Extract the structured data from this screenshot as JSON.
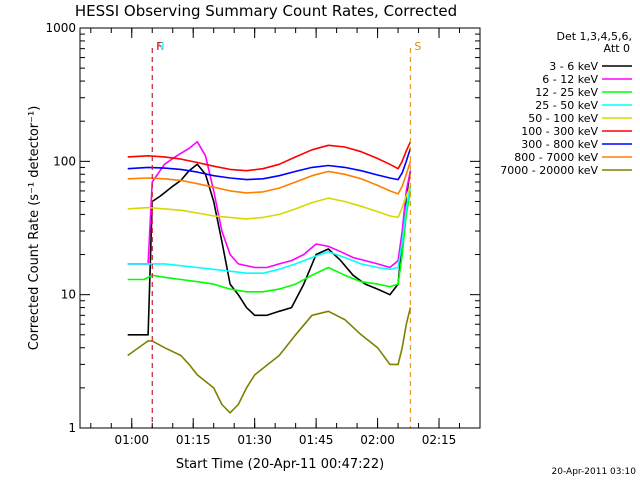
{
  "chart_data": {
    "type": "line",
    "title": "HESSI Observing Summary Count Rates, Corrected",
    "xlabel": "Start Time (20-Apr-11 00:47:22)",
    "ylabel": "Corrected Count Rate (s⁻¹ detector⁻¹)",
    "yscale": "log",
    "ylim": [
      1,
      1000
    ],
    "xlim": [
      "00:47:22",
      "02:25:00"
    ],
    "y_ticks": [
      "1",
      "10",
      "100",
      "1000"
    ],
    "x_ticks": [
      "01:00",
      "01:15",
      "01:30",
      "01:45",
      "02:00",
      "02:15"
    ],
    "legend_header": [
      "Det 1,3,4,5,6,",
      "Att 0"
    ],
    "legend_position": "right",
    "footer_date": "20-Apr-2011 03:10",
    "markers": [
      {
        "label": "N",
        "color": "#00e5ee",
        "time": "01:05"
      },
      {
        "label": "F",
        "color": "#e8000b",
        "time": "01:05"
      },
      {
        "label": "S",
        "color": "#e08a00",
        "time": "02:08"
      }
    ],
    "series": [
      {
        "name": "3 - 6 keV",
        "color": "#000000",
        "x": [
          "00:59",
          "01:03",
          "01:04",
          "01:05",
          "01:07",
          "01:10",
          "01:12",
          "01:14",
          "01:16",
          "01:18",
          "01:20",
          "01:22",
          "01:24",
          "01:26",
          "01:28",
          "01:30",
          "01:33",
          "01:36",
          "01:39",
          "01:42",
          "01:45",
          "01:48",
          "01:51",
          "01:54",
          "01:57",
          "02:00",
          "02:03",
          "02:05",
          "02:06",
          "02:07",
          "02:08"
        ],
        "y": [
          5,
          5,
          5,
          50,
          55,
          65,
          72,
          85,
          95,
          80,
          50,
          25,
          12,
          10,
          8,
          7,
          7,
          7.5,
          8,
          12,
          20,
          22,
          18,
          14,
          12,
          11,
          10,
          12,
          25,
          55,
          85
        ]
      },
      {
        "name": "6 - 12 keV",
        "color": "#ff00ff",
        "x": [
          "00:59",
          "01:03",
          "01:04",
          "01:05",
          "01:08",
          "01:11",
          "01:14",
          "01:16",
          "01:18",
          "01:20",
          "01:22",
          "01:24",
          "01:26",
          "01:30",
          "01:33",
          "01:36",
          "01:39",
          "01:42",
          "01:45",
          "01:48",
          "01:51",
          "01:54",
          "01:57",
          "02:00",
          "02:03",
          "02:05",
          "02:06",
          "02:07",
          "02:08"
        ],
        "y": [
          17,
          17,
          17,
          70,
          95,
          110,
          125,
          140,
          110,
          60,
          30,
          20,
          17,
          16,
          16,
          17,
          18,
          20,
          24,
          23,
          21,
          19,
          18,
          17,
          16,
          18,
          30,
          60,
          85
        ]
      },
      {
        "name": "12 - 25 keV",
        "color": "#00ff00",
        "x": [
          "00:59",
          "01:03",
          "01:05",
          "01:08",
          "01:12",
          "01:16",
          "01:20",
          "01:24",
          "01:28",
          "01:32",
          "01:36",
          "01:40",
          "01:44",
          "01:48",
          "01:52",
          "01:56",
          "02:00",
          "02:03",
          "02:05",
          "02:06",
          "02:07",
          "02:08"
        ],
        "y": [
          13,
          13,
          14,
          13.5,
          13,
          12.5,
          12,
          11,
          10.5,
          10.5,
          11,
          12,
          14,
          16,
          14,
          12.5,
          12,
          11.5,
          12,
          20,
          40,
          60
        ]
      },
      {
        "name": "25 - 50 keV",
        "color": "#00ffff",
        "x": [
          "00:59",
          "01:03",
          "01:05",
          "01:08",
          "01:12",
          "01:16",
          "01:20",
          "01:24",
          "01:28",
          "01:32",
          "01:36",
          "01:40",
          "01:44",
          "01:48",
          "01:52",
          "01:56",
          "02:00",
          "02:03",
          "02:05",
          "02:06",
          "02:07",
          "02:08"
        ],
        "y": [
          17,
          17,
          17,
          17,
          16.5,
          16,
          15.5,
          15,
          14.5,
          14.5,
          15.5,
          17,
          19,
          21,
          19,
          17,
          16,
          15.5,
          16,
          25,
          45,
          65
        ]
      },
      {
        "name": "50 - 100 keV",
        "color": "#d8d800",
        "x": [
          "00:59",
          "01:04",
          "01:08",
          "01:12",
          "01:16",
          "01:20",
          "01:24",
          "01:28",
          "01:32",
          "01:36",
          "01:40",
          "01:44",
          "01:48",
          "01:52",
          "01:56",
          "02:00",
          "02:03",
          "02:05",
          "02:06",
          "02:07",
          "02:08"
        ],
        "y": [
          44,
          45,
          44,
          43,
          41,
          39,
          38,
          37,
          38,
          40,
          44,
          49,
          53,
          50,
          46,
          42,
          39,
          38,
          45,
          55,
          65
        ]
      },
      {
        "name": "100 - 300 keV",
        "color": "#ff0000",
        "x": [
          "00:59",
          "01:04",
          "01:08",
          "01:12",
          "01:16",
          "01:20",
          "01:24",
          "01:28",
          "01:32",
          "01:36",
          "01:40",
          "01:44",
          "01:48",
          "01:52",
          "01:56",
          "02:00",
          "02:03",
          "02:05",
          "02:06",
          "02:07",
          "02:08"
        ],
        "y": [
          108,
          110,
          108,
          104,
          98,
          92,
          87,
          85,
          88,
          95,
          108,
          122,
          132,
          128,
          118,
          105,
          95,
          88,
          100,
          120,
          140
        ]
      },
      {
        "name": "300 - 800 keV",
        "color": "#0000ff",
        "x": [
          "00:59",
          "01:04",
          "01:08",
          "01:12",
          "01:16",
          "01:20",
          "01:24",
          "01:28",
          "01:32",
          "01:36",
          "01:40",
          "01:44",
          "01:48",
          "01:52",
          "01:56",
          "02:00",
          "02:03",
          "02:05",
          "02:06",
          "02:07",
          "02:08"
        ],
        "y": [
          88,
          90,
          89,
          87,
          83,
          78,
          75,
          73,
          74,
          78,
          84,
          90,
          93,
          90,
          85,
          79,
          75,
          73,
          82,
          100,
          125
        ]
      },
      {
        "name": "800 - 7000 keV",
        "color": "#ff7f00",
        "x": [
          "00:59",
          "01:04",
          "01:08",
          "01:12",
          "01:16",
          "01:20",
          "01:24",
          "01:28",
          "01:32",
          "01:36",
          "01:40",
          "01:44",
          "01:48",
          "01:52",
          "01:56",
          "02:00",
          "02:03",
          "02:05",
          "02:06",
          "02:07",
          "02:08"
        ],
        "y": [
          74,
          75,
          74,
          72,
          68,
          64,
          60,
          58,
          59,
          63,
          70,
          78,
          84,
          80,
          74,
          66,
          60,
          57,
          65,
          80,
          100
        ]
      },
      {
        "name": "7000 - 20000 keV",
        "color": "#808000",
        "x": [
          "00:59",
          "01:04",
          "01:05",
          "01:08",
          "01:12",
          "01:14",
          "01:16",
          "01:20",
          "01:22",
          "01:24",
          "01:26",
          "01:28",
          "01:30",
          "01:32",
          "01:36",
          "01:40",
          "01:44",
          "01:48",
          "01:52",
          "01:56",
          "02:00",
          "02:03",
          "02:05",
          "02:06",
          "02:07",
          "02:08"
        ],
        "y": [
          3.5,
          4.5,
          4.5,
          4,
          3.5,
          3,
          2.5,
          2,
          1.5,
          1.3,
          1.5,
          2,
          2.5,
          2.8,
          3.5,
          5,
          7,
          7.5,
          6.5,
          5,
          4,
          3,
          3,
          4,
          6,
          8
        ]
      }
    ]
  }
}
